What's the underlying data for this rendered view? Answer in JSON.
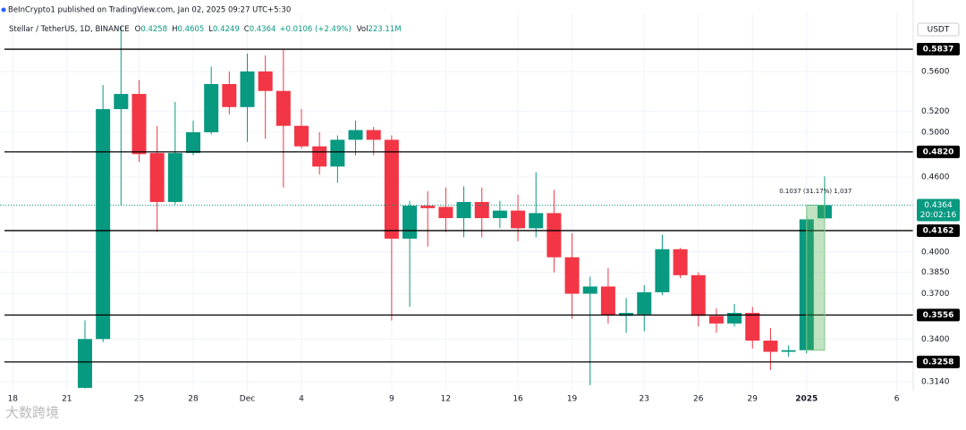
{
  "chart_data": {
    "type": "candlestick",
    "publisher": "BeInCrypto1 published on TradingView.com, Jan 02, 2025 09:27 UTC+5:30",
    "symbol": "Stellar / TetherUS, 1D, BINANCE",
    "header_labels": {
      "open": "O",
      "high": "H",
      "low": "L",
      "close": "C",
      "volume": "Vol"
    },
    "change": "+0.0106 (+2.49%)",
    "volume": "223.11M",
    "currency": "USDT",
    "countdown": "20:02:16",
    "measure": "0.1037 (31.17%) 1,037",
    "watermark": "大数跨境",
    "categories": [
      "18",
      null,
      null,
      "21",
      null,
      null,
      null,
      "25",
      null,
      null,
      "28",
      null,
      null,
      "Dec",
      null,
      null,
      "4",
      null,
      null,
      null,
      null,
      "9",
      null,
      null,
      "12",
      null,
      null,
      null,
      "16",
      null,
      null,
      "19",
      null,
      null,
      null,
      "23",
      null,
      null,
      "26",
      null,
      null,
      "29",
      null,
      null,
      "2025",
      null,
      null,
      null,
      null,
      "6"
    ],
    "open": [
      null,
      null,
      null,
      null,
      0.3104,
      0.34,
      0.522,
      0.537,
      0.481,
      0.439,
      0.481,
      0.5,
      0.547,
      0.524,
      0.56,
      0.54,
      0.506,
      0.487,
      0.469,
      0.493,
      0.502,
      0.493,
      0.41,
      0.436,
      0.435,
      0.426,
      0.439,
      0.426,
      0.432,
      0.418,
      0.43,
      0.396,
      0.37,
      0.375,
      0.355,
      0.356,
      0.371,
      0.402,
      0.383,
      0.355,
      0.35,
      0.357,
      0.339,
      0.332,
      0.333,
      0.4258,
      null,
      null,
      null,
      null
    ],
    "high": [
      null,
      null,
      null,
      null,
      0.352,
      0.546,
      0.609,
      0.551,
      0.506,
      0.529,
      0.511,
      0.565,
      0.56,
      0.579,
      0.577,
      0.584,
      0.522,
      0.5,
      0.497,
      0.511,
      0.505,
      0.497,
      0.44,
      0.448,
      0.451,
      0.452,
      0.451,
      0.44,
      0.445,
      0.464,
      0.449,
      0.414,
      0.382,
      0.388,
      0.367,
      0.376,
      0.413,
      0.403,
      0.385,
      0.36,
      0.363,
      0.361,
      0.347,
      0.336,
      0.428,
      0.4605,
      null,
      null,
      null,
      null
    ],
    "low": [
      null,
      null,
      null,
      null,
      0.31,
      0.338,
      0.436,
      0.473,
      0.415,
      0.437,
      0.479,
      0.498,
      0.517,
      0.491,
      0.494,
      0.451,
      0.485,
      0.462,
      0.455,
      0.479,
      0.479,
      0.352,
      0.361,
      0.404,
      0.415,
      0.411,
      0.411,
      0.418,
      0.408,
      0.411,
      0.385,
      0.353,
      0.312,
      0.35,
      0.344,
      0.345,
      0.369,
      0.381,
      0.348,
      0.344,
      0.348,
      0.334,
      0.321,
      0.329,
      0.331,
      0.4249,
      null,
      null,
      null,
      null
    ],
    "close": [
      null,
      null,
      null,
      null,
      0.34,
      0.522,
      0.537,
      0.48,
      0.439,
      0.481,
      0.5,
      0.547,
      0.524,
      0.56,
      0.54,
      0.506,
      0.487,
      0.469,
      0.493,
      0.502,
      0.493,
      0.41,
      0.436,
      0.434,
      0.426,
      0.439,
      0.426,
      0.432,
      0.418,
      0.43,
      0.396,
      0.37,
      0.375,
      0.3556,
      0.357,
      0.371,
      0.402,
      0.383,
      0.355,
      0.35,
      0.357,
      0.339,
      0.332,
      0.333,
      0.425,
      0.4364,
      null,
      null,
      null,
      null
    ],
    "up_color": "#089981",
    "down_color": "#f23645",
    "log_scale": true,
    "grid": true,
    "ylim": [
      0.3088,
      0.624
    ],
    "yticks": [
      {
        "value": 0.56,
        "label": "0.5600"
      },
      {
        "value": 0.52,
        "label": "0.5200"
      },
      {
        "value": 0.5,
        "label": "0.5000"
      },
      {
        "value": 0.46,
        "label": "0.4600"
      },
      {
        "value": 0.4,
        "label": "0.4000"
      },
      {
        "value": 0.385,
        "label": "0.3850"
      },
      {
        "value": 0.37,
        "label": "0.3700"
      },
      {
        "value": 0.34,
        "label": "0.3400"
      },
      {
        "value": 0.314,
        "label": "0.3140"
      }
    ],
    "levels": [
      0.5837,
      {
        "value": 0.482,
        "label": "0.4820"
      },
      0.4162,
      0.3556,
      0.3258
    ]
  }
}
